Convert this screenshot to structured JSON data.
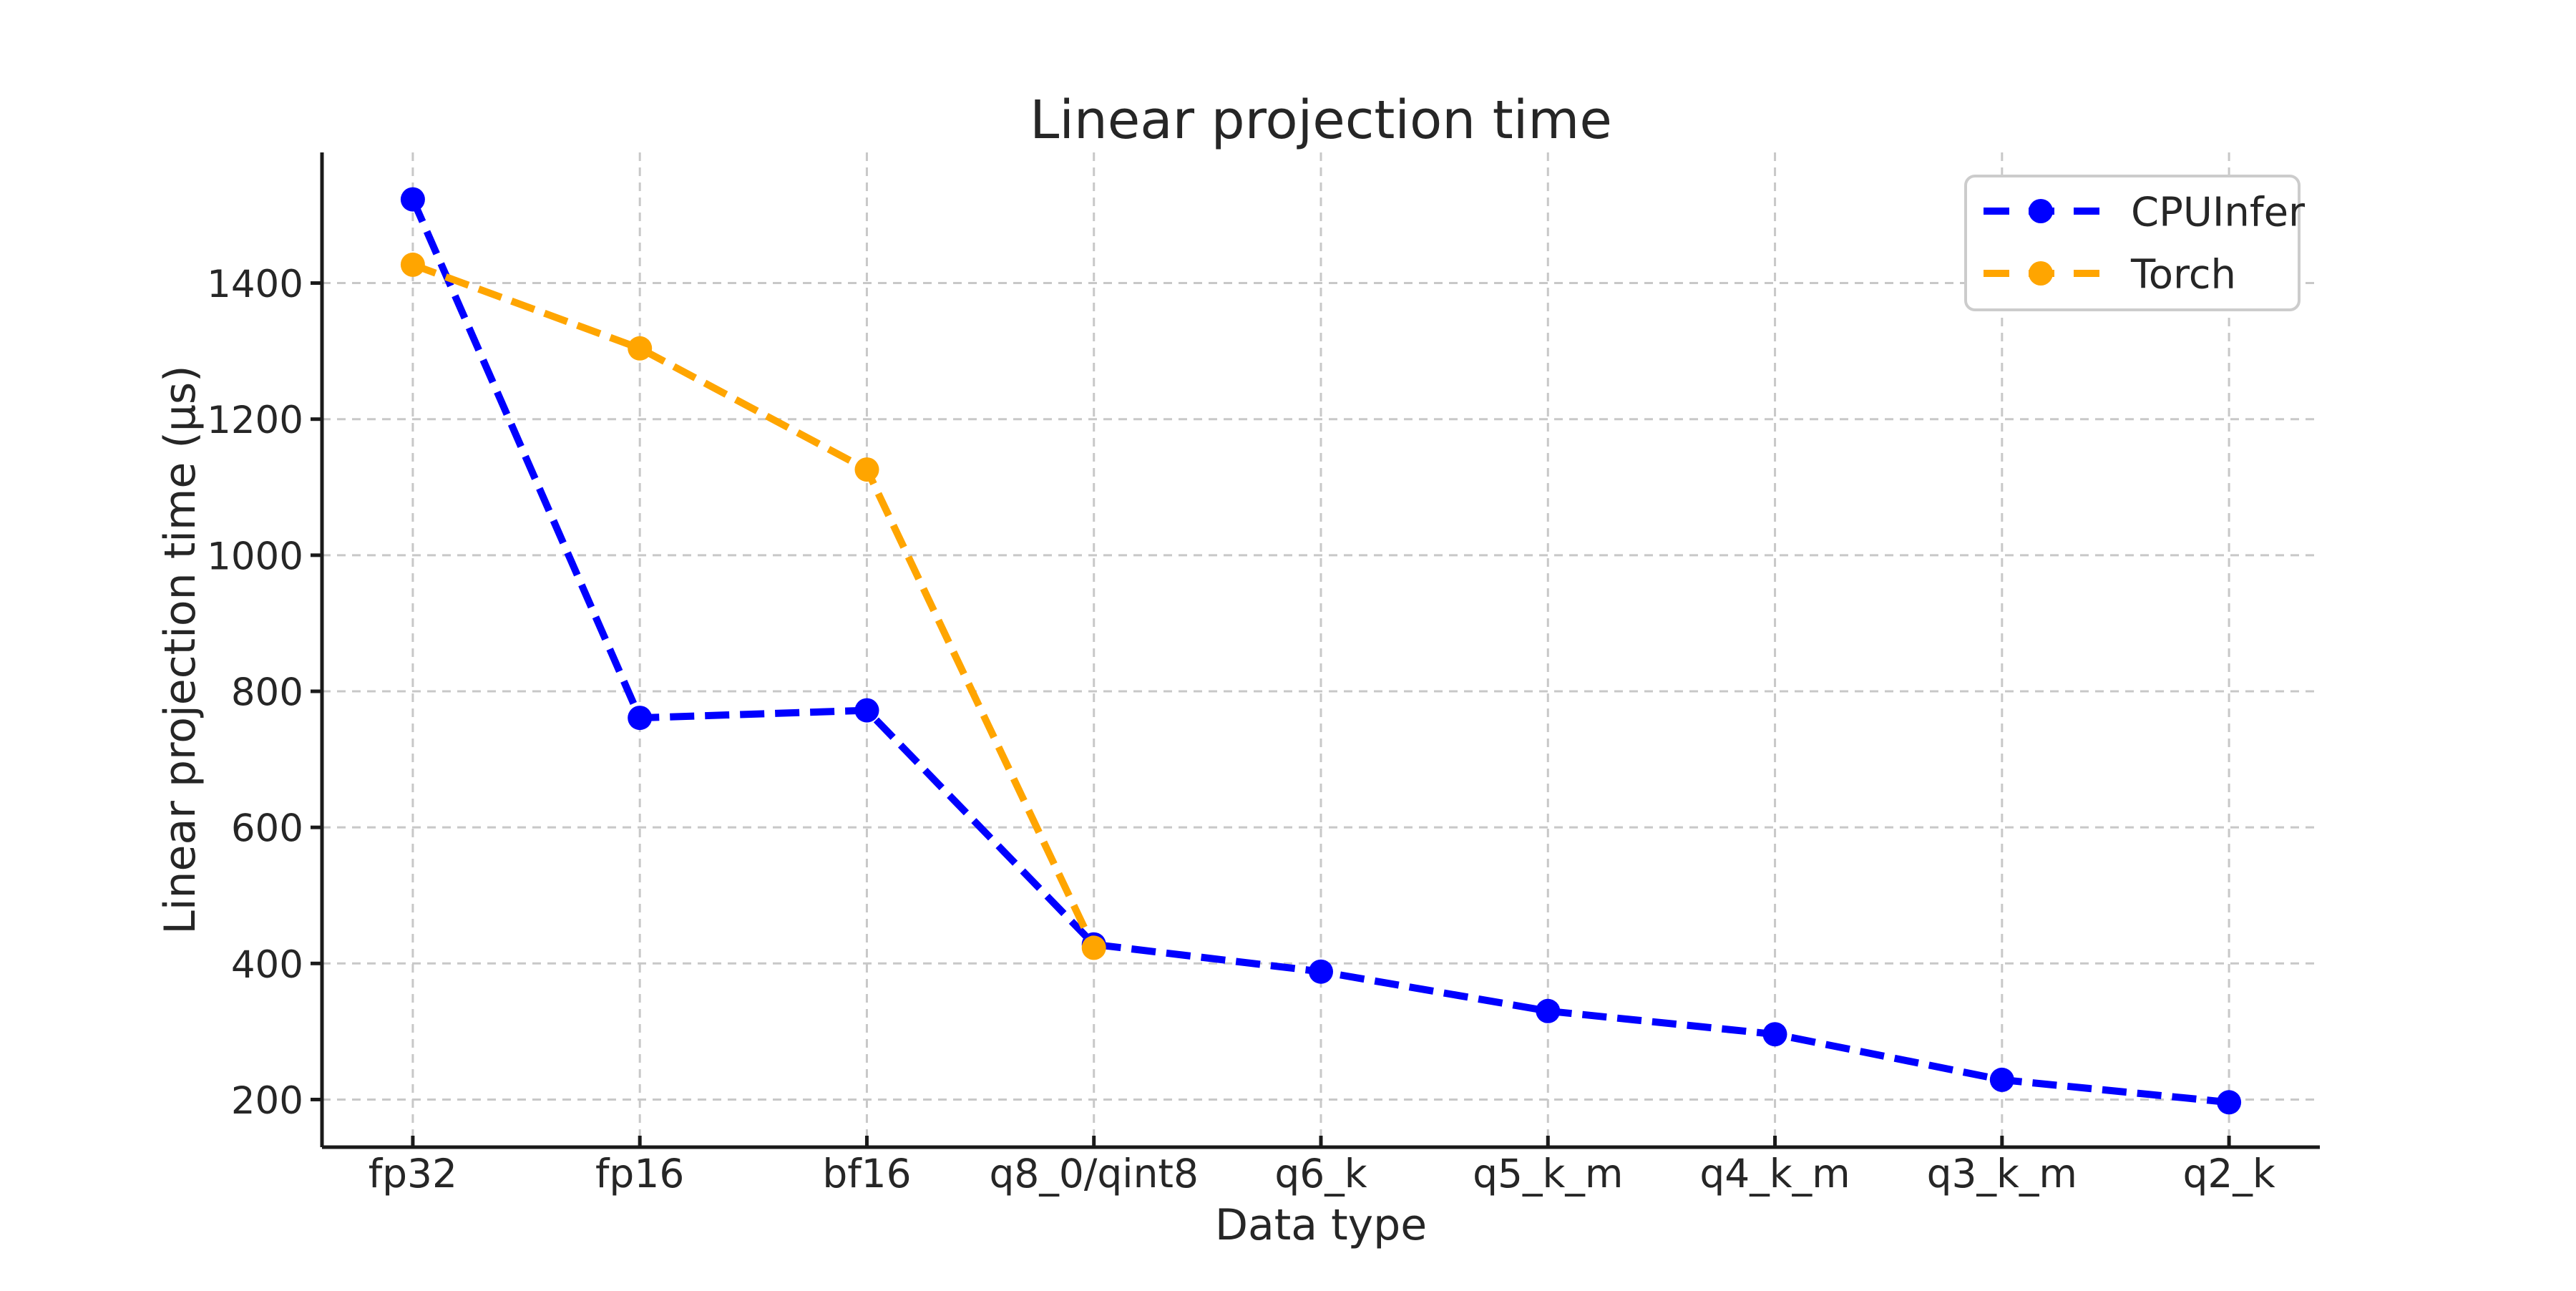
{
  "chart_data": {
    "type": "line",
    "title": "Linear projection time",
    "xlabel": "Data type",
    "ylabel": "Linear projection time (μs)",
    "categories": [
      "fp32",
      "fp16",
      "bf16",
      "q8_0/qint8",
      "q6_k",
      "q5_k_m",
      "q4_k_m",
      "q3_k_m",
      "q2_k"
    ],
    "series": [
      {
        "name": "CPUInfer",
        "color": "#0000ff",
        "values": [
          1523,
          761,
          772,
          428,
          388,
          330,
          296,
          229,
          196
        ]
      },
      {
        "name": "Torch",
        "color": "#ffa500",
        "values": [
          1427,
          1304,
          1126,
          423,
          null,
          null,
          null,
          null,
          null
        ]
      }
    ],
    "yticks": [
      200,
      400,
      600,
      800,
      1000,
      1200,
      1400
    ],
    "ylim": [
      130,
      1592
    ],
    "x_margin": 0.4,
    "grid": true,
    "grid_style": "dashed",
    "line_style": "dashed",
    "marker": "circle",
    "legend": {
      "position": "upper right",
      "entries": [
        "CPUInfer",
        "Torch"
      ]
    },
    "colors": {
      "grid": "#c8c8c8",
      "spine": "#1a1a1a",
      "text": "#262626",
      "legend_border": "#cccccc",
      "background": "#ffffff"
    }
  }
}
